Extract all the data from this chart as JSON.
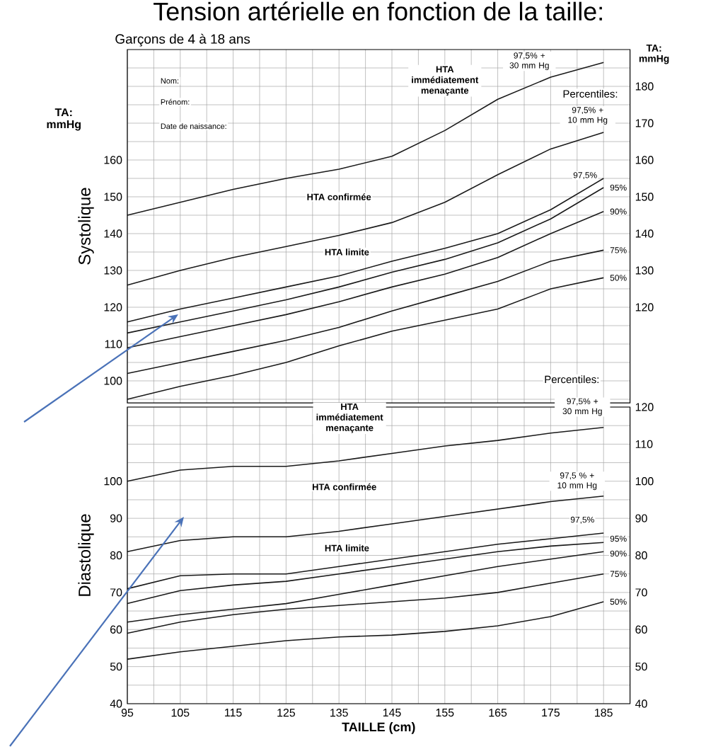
{
  "chart_data": [
    {
      "type": "line",
      "title": "Tension artérielle en fonction de la taille:",
      "subtitle": "Garçons de 4 à 18 ans",
      "ylabel": "Systolique",
      "y2label": "TA: mmHg",
      "annotations": [
        "HTA immédiatement menaçante",
        "HTA confirmée",
        "HTA limite",
        "Percentiles:",
        "Nom:",
        "Prénom:",
        "Date de naissance:",
        "TA: mmHg"
      ],
      "x": [
        95,
        105,
        115,
        125,
        135,
        145,
        155,
        165,
        175,
        185
      ],
      "series": [
        {
          "name": "97,5% + 30 mm Hg",
          "color": "#1a1a1a",
          "values": [
            145,
            148.5,
            152,
            155,
            157.5,
            161,
            168,
            176.5,
            182.5,
            186.5
          ]
        },
        {
          "name": "97,5% + 10 mm Hg",
          "color": "#1a1a1a",
          "values": [
            126,
            130,
            133.5,
            136.5,
            139.5,
            143,
            148.5,
            156,
            163,
            167.5
          ]
        },
        {
          "name": "97,5%",
          "color": "#1a1a1a",
          "values": [
            116,
            119.5,
            122.5,
            125.5,
            128.5,
            132.5,
            136,
            140,
            146.5,
            155
          ]
        },
        {
          "name": "95%",
          "color": "#1a1a1a",
          "values": [
            113,
            116,
            119,
            122,
            125.5,
            129.5,
            133,
            137.5,
            144,
            152.5
          ]
        },
        {
          "name": "90%",
          "color": "#1a1a1a",
          "values": [
            109,
            112,
            115,
            118,
            121.5,
            125.5,
            129,
            133.5,
            140,
            146
          ]
        },
        {
          "name": "75%",
          "color": "#1a1a1a",
          "values": [
            102,
            105,
            108,
            111,
            114.5,
            119,
            123,
            127,
            132.5,
            135.5
          ]
        },
        {
          "name": "50%",
          "color": "#1a1a1a",
          "values": [
            95,
            98.5,
            101.5,
            105,
            109.5,
            113.5,
            116.5,
            119.5,
            125,
            128
          ]
        }
      ],
      "xlim": [
        95,
        190
      ],
      "xticks": [
        95,
        {
          "value": 100,
          "label": null
        },
        105,
        {
          "value": 110,
          "label": null
        },
        115,
        {
          "value": 120,
          "label": null
        },
        125,
        {
          "value": 130,
          "label": null
        },
        135,
        {
          "value": 140,
          "label": null
        },
        145,
        {
          "value": 150,
          "label": null
        },
        155,
        {
          "value": 160,
          "label": null
        },
        165,
        {
          "value": 170,
          "label": null
        },
        175,
        {
          "value": 180,
          "label": null
        },
        185
      ],
      "ylim": [
        94,
        190
      ],
      "yticks": [
        {
          "value": 95,
          "label": null
        },
        100,
        {
          "value": 105,
          "label": null
        },
        110,
        {
          "value": 115,
          "label": null
        },
        120,
        {
          "value": 125,
          "label": null
        },
        130,
        {
          "value": 135,
          "label": null
        },
        140,
        {
          "value": 145,
          "label": null
        },
        150,
        {
          "value": 155,
          "label": null
        },
        160,
        {
          "value": 165,
          "label": null
        },
        {
          "value": 170,
          "label": null
        },
        {
          "value": 175,
          "label": null
        },
        {
          "value": 180,
          "label": null
        },
        {
          "value": 185,
          "label": null
        }
      ],
      "y2lim": [
        94,
        190
      ],
      "y2ticks": [
        120,
        130,
        140,
        150,
        160,
        170,
        180
      ],
      "tick_labels": "y",
      "grid": true,
      "marker": "none",
      "line_style": "solid"
    },
    {
      "type": "line",
      "xlabel": "TAILLE (cm)",
      "ylabel": "Diastolique",
      "annotations": [
        "HTA immédiatement menaçante",
        "HTA confirmée",
        "HTA limite",
        "Percentiles:"
      ],
      "x": [
        95,
        105,
        115,
        125,
        135,
        145,
        155,
        165,
        175,
        185
      ],
      "series": [
        {
          "name": "97,5% + 30 mm Hg",
          "color": "#1a1a1a",
          "values": [
            100,
            103,
            104,
            104,
            105.5,
            107.5,
            109.5,
            111,
            113,
            114.5
          ]
        },
        {
          "name": "97,5 % + 10 mm Hg",
          "color": "#1a1a1a",
          "values": [
            81,
            84,
            85,
            85,
            86.5,
            88.5,
            90.5,
            92.5,
            94.5,
            96
          ]
        },
        {
          "name": "97,5%",
          "color": "#1a1a1a",
          "values": [
            71,
            74.5,
            75,
            75,
            77,
            79,
            81,
            83,
            84.5,
            86
          ]
        },
        {
          "name": "95%",
          "color": "#1a1a1a",
          "values": [
            67,
            70.5,
            72,
            73,
            75,
            77,
            79,
            81,
            82.5,
            83.5
          ]
        },
        {
          "name": "90%",
          "color": "#1a1a1a",
          "values": [
            62,
            64,
            65.5,
            67,
            69.5,
            72,
            74.5,
            77,
            79,
            81
          ]
        },
        {
          "name": "75%",
          "color": "#1a1a1a",
          "values": [
            59,
            62,
            64,
            65.5,
            66.5,
            67.5,
            68.5,
            70,
            72.5,
            75
          ]
        },
        {
          "name": "50%",
          "color": "#1a1a1a",
          "values": [
            52,
            54,
            55.5,
            57,
            58,
            58.5,
            59.5,
            61,
            63.5,
            67.5
          ]
        }
      ],
      "xlim": [
        95,
        190
      ],
      "xticks": [
        95,
        {
          "value": 100,
          "label": null
        },
        105,
        {
          "value": 110,
          "label": null
        },
        115,
        {
          "value": 120,
          "label": null
        },
        125,
        {
          "value": 130,
          "label": null
        },
        135,
        {
          "value": 140,
          "label": null
        },
        145,
        {
          "value": 150,
          "label": null
        },
        155,
        {
          "value": 160,
          "label": null
        },
        165,
        {
          "value": 170,
          "label": null
        },
        175,
        {
          "value": 180,
          "label": null
        },
        185
      ],
      "ylim": [
        40,
        120
      ],
      "yticks": [
        40,
        {
          "value": 45,
          "label": null
        },
        50,
        {
          "value": 55,
          "label": null
        },
        60,
        {
          "value": 65,
          "label": null
        },
        70,
        {
          "value": 75,
          "label": null
        },
        80,
        {
          "value": 85,
          "label": null
        },
        90,
        {
          "value": 95,
          "label": null
        },
        100,
        {
          "value": 105,
          "label": null
        },
        {
          "value": 110,
          "label": null
        },
        {
          "value": 115,
          "label": null
        },
        {
          "value": 120,
          "label": null
        }
      ],
      "y2lim": [
        40,
        120
      ],
      "y2ticks": [
        40,
        50,
        60,
        70,
        80,
        90,
        100,
        110,
        120
      ],
      "grid": true,
      "marker": "none",
      "line_style": "solid"
    }
  ]
}
